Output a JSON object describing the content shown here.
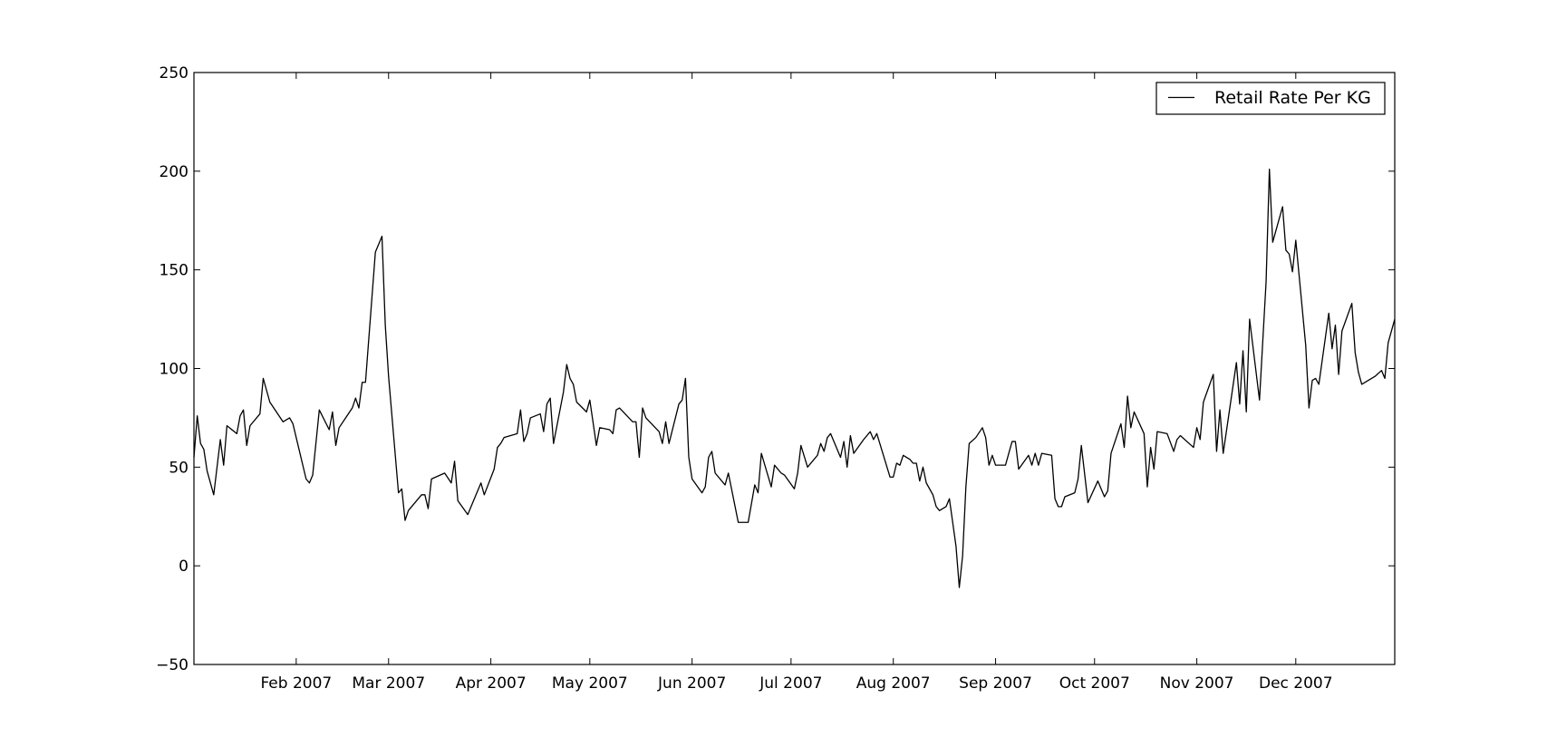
{
  "chart_data": {
    "type": "line",
    "title": "",
    "xlabel": "",
    "ylabel": "",
    "grid": false,
    "legend_position": "top-right",
    "xlim": [
      "2007-01-01",
      "2007-12-31"
    ],
    "ylim": [
      -50,
      250
    ],
    "x_ticks": [
      {
        "date": "2007-02-01",
        "label": "Feb 2007"
      },
      {
        "date": "2007-03-01",
        "label": "Mar 2007"
      },
      {
        "date": "2007-04-01",
        "label": "Apr 2007"
      },
      {
        "date": "2007-05-01",
        "label": "May 2007"
      },
      {
        "date": "2007-06-01",
        "label": "Jun 2007"
      },
      {
        "date": "2007-07-01",
        "label": "Jul 2007"
      },
      {
        "date": "2007-08-01",
        "label": "Aug 2007"
      },
      {
        "date": "2007-09-01",
        "label": "Sep 2007"
      },
      {
        "date": "2007-10-01",
        "label": "Oct 2007"
      },
      {
        "date": "2007-11-01",
        "label": "Nov 2007"
      },
      {
        "date": "2007-12-01",
        "label": "Dec 2007"
      }
    ],
    "y_ticks": [
      -50,
      0,
      50,
      100,
      150,
      200,
      250
    ],
    "y_tick_labels": [
      "−50",
      "0",
      "50",
      "100",
      "150",
      "200",
      "250"
    ],
    "series": [
      {
        "name": "Retail Rate Per KG",
        "color": "#000000",
        "points": [
          [
            "2007-01-01",
            55
          ],
          [
            "2007-01-02",
            76
          ],
          [
            "2007-01-03",
            62
          ],
          [
            "2007-01-04",
            59
          ],
          [
            "2007-01-05",
            48
          ],
          [
            "2007-01-07",
            36
          ],
          [
            "2007-01-09",
            64
          ],
          [
            "2007-01-10",
            51
          ],
          [
            "2007-01-11",
            71
          ],
          [
            "2007-01-14",
            67
          ],
          [
            "2007-01-15",
            76
          ],
          [
            "2007-01-16",
            79
          ],
          [
            "2007-01-17",
            61
          ],
          [
            "2007-01-18",
            71
          ],
          [
            "2007-01-21",
            77
          ],
          [
            "2007-01-22",
            95
          ],
          [
            "2007-01-24",
            83
          ],
          [
            "2007-01-28",
            73
          ],
          [
            "2007-01-30",
            75
          ],
          [
            "2007-01-31",
            72
          ],
          [
            "2007-02-04",
            44
          ],
          [
            "2007-02-05",
            42
          ],
          [
            "2007-02-06",
            46
          ],
          [
            "2007-02-08",
            79
          ],
          [
            "2007-02-11",
            69
          ],
          [
            "2007-02-12",
            78
          ],
          [
            "2007-02-13",
            61
          ],
          [
            "2007-02-14",
            70
          ],
          [
            "2007-02-18",
            80
          ],
          [
            "2007-02-19",
            85
          ],
          [
            "2007-02-20",
            80
          ],
          [
            "2007-02-21",
            93
          ],
          [
            "2007-02-22",
            93
          ],
          [
            "2007-02-25",
            159
          ],
          [
            "2007-02-27",
            167
          ],
          [
            "2007-02-28",
            122
          ],
          [
            "2007-03-01",
            96
          ],
          [
            "2007-03-04",
            37
          ],
          [
            "2007-03-05",
            39
          ],
          [
            "2007-03-06",
            23
          ],
          [
            "2007-03-07",
            28
          ],
          [
            "2007-03-11",
            36
          ],
          [
            "2007-03-12",
            36
          ],
          [
            "2007-03-13",
            29
          ],
          [
            "2007-03-14",
            44
          ],
          [
            "2007-03-18",
            47
          ],
          [
            "2007-03-20",
            42
          ],
          [
            "2007-03-21",
            53
          ],
          [
            "2007-03-22",
            33
          ],
          [
            "2007-03-25",
            26
          ],
          [
            "2007-03-29",
            42
          ],
          [
            "2007-03-30",
            36
          ],
          [
            "2007-04-02",
            49
          ],
          [
            "2007-04-03",
            60
          ],
          [
            "2007-04-04",
            62
          ],
          [
            "2007-04-05",
            65
          ],
          [
            "2007-04-09",
            67
          ],
          [
            "2007-04-10",
            79
          ],
          [
            "2007-04-11",
            63
          ],
          [
            "2007-04-12",
            67
          ],
          [
            "2007-04-13",
            75
          ],
          [
            "2007-04-16",
            77
          ],
          [
            "2007-04-17",
            68
          ],
          [
            "2007-04-18",
            82
          ],
          [
            "2007-04-19",
            85
          ],
          [
            "2007-04-20",
            62
          ],
          [
            "2007-04-23",
            88
          ],
          [
            "2007-04-24",
            102
          ],
          [
            "2007-04-25",
            95
          ],
          [
            "2007-04-26",
            92
          ],
          [
            "2007-04-27",
            83
          ],
          [
            "2007-04-30",
            78
          ],
          [
            "2007-05-01",
            84
          ],
          [
            "2007-05-03",
            61
          ],
          [
            "2007-05-04",
            70
          ],
          [
            "2007-05-07",
            69
          ],
          [
            "2007-05-08",
            67
          ],
          [
            "2007-05-09",
            79
          ],
          [
            "2007-05-10",
            80
          ],
          [
            "2007-05-14",
            73
          ],
          [
            "2007-05-15",
            73
          ],
          [
            "2007-05-16",
            55
          ],
          [
            "2007-05-17",
            80
          ],
          [
            "2007-05-18",
            75
          ],
          [
            "2007-05-22",
            68
          ],
          [
            "2007-05-23",
            62
          ],
          [
            "2007-05-24",
            73
          ],
          [
            "2007-05-25",
            62
          ],
          [
            "2007-05-28",
            82
          ],
          [
            "2007-05-29",
            84
          ],
          [
            "2007-05-30",
            95
          ],
          [
            "2007-05-31",
            55
          ],
          [
            "2007-06-01",
            44
          ],
          [
            "2007-06-04",
            37
          ],
          [
            "2007-06-05",
            40
          ],
          [
            "2007-06-06",
            55
          ],
          [
            "2007-06-07",
            58
          ],
          [
            "2007-06-08",
            47
          ],
          [
            "2007-06-11",
            41
          ],
          [
            "2007-06-12",
            47
          ],
          [
            "2007-06-15",
            22
          ],
          [
            "2007-06-18",
            22
          ],
          [
            "2007-06-20",
            41
          ],
          [
            "2007-06-21",
            37
          ],
          [
            "2007-06-22",
            57
          ],
          [
            "2007-06-25",
            40
          ],
          [
            "2007-06-26",
            51
          ],
          [
            "2007-06-28",
            47
          ],
          [
            "2007-06-29",
            46
          ],
          [
            "2007-07-02",
            39
          ],
          [
            "2007-07-03",
            47
          ],
          [
            "2007-07-04",
            61
          ],
          [
            "2007-07-06",
            50
          ],
          [
            "2007-07-09",
            56
          ],
          [
            "2007-07-10",
            62
          ],
          [
            "2007-07-11",
            58
          ],
          [
            "2007-07-12",
            65
          ],
          [
            "2007-07-13",
            67
          ],
          [
            "2007-07-16",
            55
          ],
          [
            "2007-07-17",
            63
          ],
          [
            "2007-07-18",
            50
          ],
          [
            "2007-07-19",
            66
          ],
          [
            "2007-07-20",
            57
          ],
          [
            "2007-07-23",
            64
          ],
          [
            "2007-07-25",
            68
          ],
          [
            "2007-07-26",
            64
          ],
          [
            "2007-07-27",
            67
          ],
          [
            "2007-07-31",
            45
          ],
          [
            "2007-08-01",
            45
          ],
          [
            "2007-08-02",
            52
          ],
          [
            "2007-08-03",
            51
          ],
          [
            "2007-08-04",
            56
          ],
          [
            "2007-08-06",
            54
          ],
          [
            "2007-08-07",
            52
          ],
          [
            "2007-08-08",
            52
          ],
          [
            "2007-08-09",
            43
          ],
          [
            "2007-08-10",
            50
          ],
          [
            "2007-08-11",
            42
          ],
          [
            "2007-08-13",
            36
          ],
          [
            "2007-08-14",
            30
          ],
          [
            "2007-08-15",
            28
          ],
          [
            "2007-08-17",
            30
          ],
          [
            "2007-08-18",
            34
          ],
          [
            "2007-08-20",
            10
          ],
          [
            "2007-08-21",
            -11
          ],
          [
            "2007-08-22",
            5
          ],
          [
            "2007-08-23",
            40
          ],
          [
            "2007-08-24",
            62
          ],
          [
            "2007-08-26",
            65
          ],
          [
            "2007-08-28",
            70
          ],
          [
            "2007-08-29",
            65
          ],
          [
            "2007-08-30",
            51
          ],
          [
            "2007-08-31",
            56
          ],
          [
            "2007-09-01",
            51
          ],
          [
            "2007-09-04",
            51
          ],
          [
            "2007-09-06",
            63
          ],
          [
            "2007-09-07",
            63
          ],
          [
            "2007-09-08",
            49
          ],
          [
            "2007-09-11",
            56
          ],
          [
            "2007-09-12",
            51
          ],
          [
            "2007-09-13",
            57
          ],
          [
            "2007-09-14",
            51
          ],
          [
            "2007-09-15",
            57
          ],
          [
            "2007-09-18",
            56
          ],
          [
            "2007-09-19",
            34
          ],
          [
            "2007-09-20",
            30
          ],
          [
            "2007-09-21",
            30
          ],
          [
            "2007-09-22",
            35
          ],
          [
            "2007-09-25",
            37
          ],
          [
            "2007-09-26",
            44
          ],
          [
            "2007-09-27",
            61
          ],
          [
            "2007-09-29",
            32
          ],
          [
            "2007-10-02",
            43
          ],
          [
            "2007-10-04",
            35
          ],
          [
            "2007-10-05",
            38
          ],
          [
            "2007-10-06",
            57
          ],
          [
            "2007-10-09",
            72
          ],
          [
            "2007-10-10",
            60
          ],
          [
            "2007-10-11",
            86
          ],
          [
            "2007-10-12",
            70
          ],
          [
            "2007-10-13",
            78
          ],
          [
            "2007-10-16",
            67
          ],
          [
            "2007-10-17",
            40
          ],
          [
            "2007-10-18",
            60
          ],
          [
            "2007-10-19",
            49
          ],
          [
            "2007-10-20",
            68
          ],
          [
            "2007-10-23",
            67
          ],
          [
            "2007-10-25",
            58
          ],
          [
            "2007-10-26",
            64
          ],
          [
            "2007-10-27",
            66
          ],
          [
            "2007-10-31",
            60
          ],
          [
            "2007-11-01",
            70
          ],
          [
            "2007-11-02",
            64
          ],
          [
            "2007-11-03",
            83
          ],
          [
            "2007-11-06",
            97
          ],
          [
            "2007-11-07",
            58
          ],
          [
            "2007-11-08",
            79
          ],
          [
            "2007-11-09",
            57
          ],
          [
            "2007-11-13",
            103
          ],
          [
            "2007-11-14",
            82
          ],
          [
            "2007-11-15",
            109
          ],
          [
            "2007-11-16",
            78
          ],
          [
            "2007-11-17",
            125
          ],
          [
            "2007-11-20",
            84
          ],
          [
            "2007-11-22",
            144
          ],
          [
            "2007-11-23",
            201
          ],
          [
            "2007-11-24",
            164
          ],
          [
            "2007-11-27",
            182
          ],
          [
            "2007-11-28",
            160
          ],
          [
            "2007-11-29",
            158
          ],
          [
            "2007-11-30",
            149
          ],
          [
            "2007-12-01",
            165
          ],
          [
            "2007-12-04",
            112
          ],
          [
            "2007-12-05",
            80
          ],
          [
            "2007-12-06",
            94
          ],
          [
            "2007-12-07",
            95
          ],
          [
            "2007-12-08",
            92
          ],
          [
            "2007-12-11",
            128
          ],
          [
            "2007-12-12",
            110
          ],
          [
            "2007-12-13",
            122
          ],
          [
            "2007-12-14",
            97
          ],
          [
            "2007-12-15",
            119
          ],
          [
            "2007-12-18",
            133
          ],
          [
            "2007-12-19",
            108
          ],
          [
            "2007-12-20",
            98
          ],
          [
            "2007-12-21",
            92
          ],
          [
            "2007-12-25",
            96
          ],
          [
            "2007-12-27",
            99
          ],
          [
            "2007-12-28",
            95
          ],
          [
            "2007-12-29",
            113
          ],
          [
            "2007-12-31",
            125
          ]
        ]
      }
    ]
  }
}
